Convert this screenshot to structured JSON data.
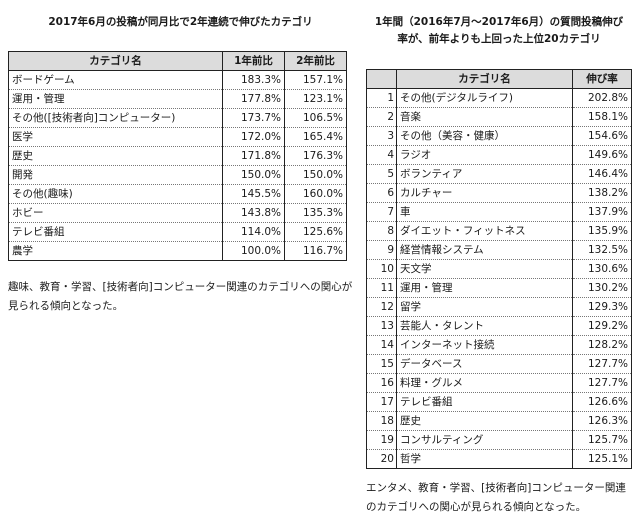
{
  "left": {
    "title": "2017年6月の投稿が同月比で2年連続で伸びたカテゴリ",
    "headers": {
      "category": "カテゴリ名",
      "one_year": "1年前比",
      "two_year": "2年前比"
    },
    "rows": [
      {
        "category": "ボードゲーム",
        "one_year": "183.3%",
        "two_year": "157.1%"
      },
      {
        "category": "運用・管理",
        "one_year": "177.8%",
        "two_year": "123.1%"
      },
      {
        "category": "その他([技術者向]コンピューター)",
        "one_year": "173.7%",
        "two_year": "106.5%"
      },
      {
        "category": "医学",
        "one_year": "172.0%",
        "two_year": "165.4%"
      },
      {
        "category": "歴史",
        "one_year": "171.8%",
        "two_year": "176.3%"
      },
      {
        "category": "開発",
        "one_year": "150.0%",
        "two_year": "150.0%"
      },
      {
        "category": "その他(趣味)",
        "one_year": "145.5%",
        "two_year": "160.0%"
      },
      {
        "category": "ホビー",
        "one_year": "143.8%",
        "two_year": "135.3%"
      },
      {
        "category": "テレビ番組",
        "one_year": "114.0%",
        "two_year": "125.6%"
      },
      {
        "category": "農学",
        "one_year": "100.0%",
        "two_year": "116.7%"
      }
    ],
    "note": "趣味、教育・学習、[技術者向]コンピューター関連のカテゴリへの関心が見られる傾向となった。"
  },
  "right": {
    "title_line1": "1年間（2016年7月～2017年6月）の質問投稿伸び",
    "title_line2": "率が、前年よりも上回った上位20カテゴリ",
    "headers": {
      "category": "カテゴリ名",
      "rate": "伸び率"
    },
    "rows": [
      {
        "rank": "1",
        "category": "その他(デジタルライフ)",
        "rate": "202.8%"
      },
      {
        "rank": "2",
        "category": "音楽",
        "rate": "158.1%"
      },
      {
        "rank": "3",
        "category": "その他（美容・健康）",
        "rate": "154.6%"
      },
      {
        "rank": "4",
        "category": "ラジオ",
        "rate": "149.6%"
      },
      {
        "rank": "5",
        "category": "ボランティア",
        "rate": "146.4%"
      },
      {
        "rank": "6",
        "category": "カルチャー",
        "rate": "138.2%"
      },
      {
        "rank": "7",
        "category": "車",
        "rate": "137.9%"
      },
      {
        "rank": "8",
        "category": "ダイエット・フィットネス",
        "rate": "135.9%"
      },
      {
        "rank": "9",
        "category": "経営情報システム",
        "rate": "132.5%"
      },
      {
        "rank": "10",
        "category": "天文学",
        "rate": "130.6%"
      },
      {
        "rank": "11",
        "category": "運用・管理",
        "rate": "130.2%"
      },
      {
        "rank": "12",
        "category": "留学",
        "rate": "129.3%"
      },
      {
        "rank": "13",
        "category": "芸能人・タレント",
        "rate": "129.2%"
      },
      {
        "rank": "14",
        "category": "インターネット接続",
        "rate": "128.2%"
      },
      {
        "rank": "15",
        "category": "データベース",
        "rate": "127.7%"
      },
      {
        "rank": "16",
        "category": "料理・グルメ",
        "rate": "127.7%"
      },
      {
        "rank": "17",
        "category": "テレビ番組",
        "rate": "126.6%"
      },
      {
        "rank": "18",
        "category": "歴史",
        "rate": "126.3%"
      },
      {
        "rank": "19",
        "category": "コンサルティング",
        "rate": "125.7%"
      },
      {
        "rank": "20",
        "category": "哲学",
        "rate": "125.1%"
      }
    ],
    "note": "エンタメ、教育・学習、[技術者向]コンピューター関連のカテゴリへの関心が見られる傾向となった。"
  }
}
